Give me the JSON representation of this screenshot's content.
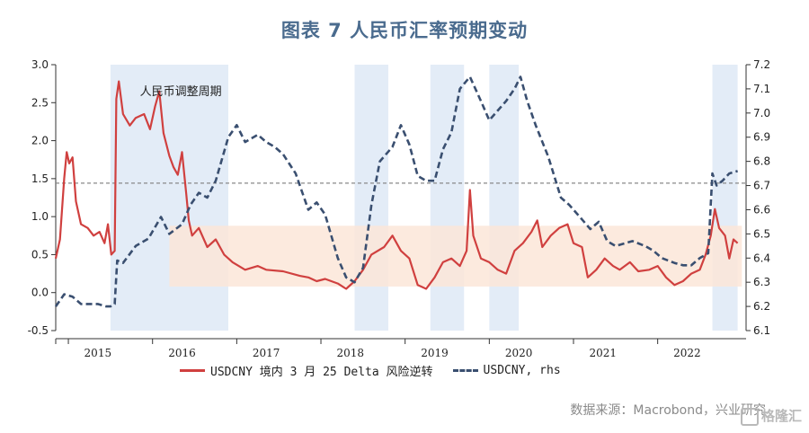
{
  "title": "图表 7 人民币汇率预期变动",
  "source": "数据来源：Macrobond，兴业研究",
  "watermark": "格隆汇",
  "chart_data": {
    "type": "line",
    "title": "图表 7 人民币汇率预期变动",
    "x_tick_labels": [
      "2015",
      "2016",
      "2017",
      "2018",
      "2019",
      "2020",
      "2021",
      "2022"
    ],
    "x_range": [
      2014.5,
      2022.7
    ],
    "y_left": {
      "ticks": [
        "-0.5",
        "0.0",
        "0.5",
        "1.0",
        "1.5",
        "2.0",
        "2.5",
        "3.0"
      ],
      "range": [
        -0.5,
        3.0
      ]
    },
    "y_right": {
      "ticks": [
        "6.1",
        "6.2",
        "6.3",
        "6.4",
        "6.5",
        "6.6",
        "6.7",
        "6.8",
        "6.9",
        "7.0",
        "7.1",
        "7.2"
      ],
      "range": [
        6.1,
        7.2
      ]
    },
    "annotation": "人民币调整周期",
    "reference_line": {
      "axis": "right",
      "value": 6.71,
      "style": "dashed grey"
    },
    "shaded_periods": [
      [
        2015.15,
        2016.55
      ],
      [
        2018.05,
        2018.45
      ],
      [
        2018.95,
        2019.35
      ],
      [
        2019.65,
        2020.0
      ],
      [
        2022.3,
        2022.6
      ]
    ],
    "band": {
      "x": [
        2015.85,
        2022.65
      ],
      "y_left": [
        0.08,
        0.88
      ],
      "color": "#fbe6d8"
    },
    "series": [
      {
        "name": "USDCNY 境内 3 月 25 Delta 风险逆转",
        "axis": "left",
        "color": "#d0403f",
        "style": "solid",
        "points": [
          [
            2014.5,
            0.45
          ],
          [
            2014.55,
            0.7
          ],
          [
            2014.6,
            1.5
          ],
          [
            2014.63,
            1.85
          ],
          [
            2014.66,
            1.7
          ],
          [
            2014.7,
            1.78
          ],
          [
            2014.74,
            1.2
          ],
          [
            2014.8,
            0.9
          ],
          [
            2014.88,
            0.85
          ],
          [
            2014.95,
            0.75
          ],
          [
            2015.02,
            0.8
          ],
          [
            2015.08,
            0.65
          ],
          [
            2015.12,
            0.9
          ],
          [
            2015.16,
            0.5
          ],
          [
            2015.2,
            0.55
          ],
          [
            2015.22,
            2.55
          ],
          [
            2015.25,
            2.78
          ],
          [
            2015.3,
            2.35
          ],
          [
            2015.38,
            2.2
          ],
          [
            2015.45,
            2.3
          ],
          [
            2015.55,
            2.35
          ],
          [
            2015.62,
            2.15
          ],
          [
            2015.68,
            2.45
          ],
          [
            2015.73,
            2.65
          ],
          [
            2015.78,
            2.1
          ],
          [
            2015.85,
            1.8
          ],
          [
            2015.9,
            1.65
          ],
          [
            2015.95,
            1.55
          ],
          [
            2016.0,
            1.85
          ],
          [
            2016.05,
            1.3
          ],
          [
            2016.08,
            0.95
          ],
          [
            2016.12,
            0.75
          ],
          [
            2016.2,
            0.85
          ],
          [
            2016.3,
            0.6
          ],
          [
            2016.4,
            0.7
          ],
          [
            2016.5,
            0.5
          ],
          [
            2016.6,
            0.4
          ],
          [
            2016.75,
            0.3
          ],
          [
            2016.9,
            0.35
          ],
          [
            2017.0,
            0.3
          ],
          [
            2017.2,
            0.28
          ],
          [
            2017.4,
            0.22
          ],
          [
            2017.5,
            0.2
          ],
          [
            2017.6,
            0.15
          ],
          [
            2017.7,
            0.18
          ],
          [
            2017.85,
            0.12
          ],
          [
            2017.95,
            0.05
          ],
          [
            2018.05,
            0.15
          ],
          [
            2018.15,
            0.3
          ],
          [
            2018.25,
            0.5
          ],
          [
            2018.4,
            0.6
          ],
          [
            2018.5,
            0.75
          ],
          [
            2018.6,
            0.55
          ],
          [
            2018.7,
            0.45
          ],
          [
            2018.8,
            0.1
          ],
          [
            2018.9,
            0.05
          ],
          [
            2019.0,
            0.2
          ],
          [
            2019.1,
            0.4
          ],
          [
            2019.2,
            0.45
          ],
          [
            2019.3,
            0.35
          ],
          [
            2019.38,
            0.55
          ],
          [
            2019.42,
            1.35
          ],
          [
            2019.46,
            0.75
          ],
          [
            2019.55,
            0.45
          ],
          [
            2019.65,
            0.4
          ],
          [
            2019.75,
            0.3
          ],
          [
            2019.85,
            0.25
          ],
          [
            2019.95,
            0.55
          ],
          [
            2020.05,
            0.65
          ],
          [
            2020.15,
            0.8
          ],
          [
            2020.22,
            0.95
          ],
          [
            2020.28,
            0.6
          ],
          [
            2020.38,
            0.75
          ],
          [
            2020.48,
            0.85
          ],
          [
            2020.58,
            0.9
          ],
          [
            2020.65,
            0.65
          ],
          [
            2020.75,
            0.6
          ],
          [
            2020.82,
            0.2
          ],
          [
            2020.92,
            0.3
          ],
          [
            2021.02,
            0.45
          ],
          [
            2021.12,
            0.35
          ],
          [
            2021.2,
            0.3
          ],
          [
            2021.32,
            0.4
          ],
          [
            2021.42,
            0.28
          ],
          [
            2021.55,
            0.3
          ],
          [
            2021.65,
            0.35
          ],
          [
            2021.75,
            0.2
          ],
          [
            2021.85,
            0.1
          ],
          [
            2021.95,
            0.15
          ],
          [
            2022.05,
            0.25
          ],
          [
            2022.15,
            0.3
          ],
          [
            2022.22,
            0.5
          ],
          [
            2022.28,
            0.75
          ],
          [
            2022.33,
            1.1
          ],
          [
            2022.38,
            0.85
          ],
          [
            2022.45,
            0.75
          ],
          [
            2022.5,
            0.45
          ],
          [
            2022.55,
            0.7
          ],
          [
            2022.6,
            0.65
          ]
        ]
      },
      {
        "name": "USDCNY, rhs",
        "axis": "right",
        "color": "#3a4f70",
        "style": "dashed",
        "points": [
          [
            2014.5,
            6.2
          ],
          [
            2014.6,
            6.25
          ],
          [
            2014.7,
            6.24
          ],
          [
            2014.8,
            6.21
          ],
          [
            2014.9,
            6.21
          ],
          [
            2015.0,
            6.21
          ],
          [
            2015.1,
            6.2
          ],
          [
            2015.15,
            6.2
          ],
          [
            2015.2,
            6.21
          ],
          [
            2015.23,
            6.39
          ],
          [
            2015.3,
            6.38
          ],
          [
            2015.45,
            6.45
          ],
          [
            2015.6,
            6.48
          ],
          [
            2015.75,
            6.57
          ],
          [
            2015.85,
            6.5
          ],
          [
            2016.0,
            6.54
          ],
          [
            2016.1,
            6.62
          ],
          [
            2016.2,
            6.67
          ],
          [
            2016.3,
            6.65
          ],
          [
            2016.4,
            6.72
          ],
          [
            2016.55,
            6.9
          ],
          [
            2016.65,
            6.95
          ],
          [
            2016.75,
            6.88
          ],
          [
            2016.9,
            6.91
          ],
          [
            2017.0,
            6.88
          ],
          [
            2017.1,
            6.86
          ],
          [
            2017.2,
            6.83
          ],
          [
            2017.35,
            6.75
          ],
          [
            2017.5,
            6.6
          ],
          [
            2017.6,
            6.63
          ],
          [
            2017.7,
            6.58
          ],
          [
            2017.85,
            6.4
          ],
          [
            2017.95,
            6.32
          ],
          [
            2018.05,
            6.3
          ],
          [
            2018.15,
            6.36
          ],
          [
            2018.25,
            6.62
          ],
          [
            2018.35,
            6.8
          ],
          [
            2018.5,
            6.86
          ],
          [
            2018.6,
            6.95
          ],
          [
            2018.7,
            6.87
          ],
          [
            2018.8,
            6.74
          ],
          [
            2018.9,
            6.72
          ],
          [
            2019.0,
            6.72
          ],
          [
            2019.1,
            6.85
          ],
          [
            2019.2,
            6.92
          ],
          [
            2019.3,
            7.1
          ],
          [
            2019.42,
            7.15
          ],
          [
            2019.55,
            7.05
          ],
          [
            2019.65,
            6.97
          ],
          [
            2019.75,
            7.01
          ],
          [
            2019.85,
            7.05
          ],
          [
            2019.95,
            7.1
          ],
          [
            2020.02,
            7.15
          ],
          [
            2020.1,
            7.05
          ],
          [
            2020.2,
            6.95
          ],
          [
            2020.35,
            6.82
          ],
          [
            2020.5,
            6.65
          ],
          [
            2020.6,
            6.62
          ],
          [
            2020.75,
            6.56
          ],
          [
            2020.85,
            6.52
          ],
          [
            2020.95,
            6.55
          ],
          [
            2021.05,
            6.47
          ],
          [
            2021.15,
            6.45
          ],
          [
            2021.25,
            6.46
          ],
          [
            2021.35,
            6.47
          ],
          [
            2021.5,
            6.45
          ],
          [
            2021.6,
            6.43
          ],
          [
            2021.7,
            6.4
          ],
          [
            2021.85,
            6.38
          ],
          [
            2021.95,
            6.37
          ],
          [
            2022.05,
            6.37
          ],
          [
            2022.15,
            6.4
          ],
          [
            2022.25,
            6.42
          ],
          [
            2022.3,
            6.75
          ],
          [
            2022.35,
            6.7
          ],
          [
            2022.42,
            6.72
          ],
          [
            2022.5,
            6.75
          ],
          [
            2022.6,
            6.76
          ]
        ]
      }
    ]
  }
}
